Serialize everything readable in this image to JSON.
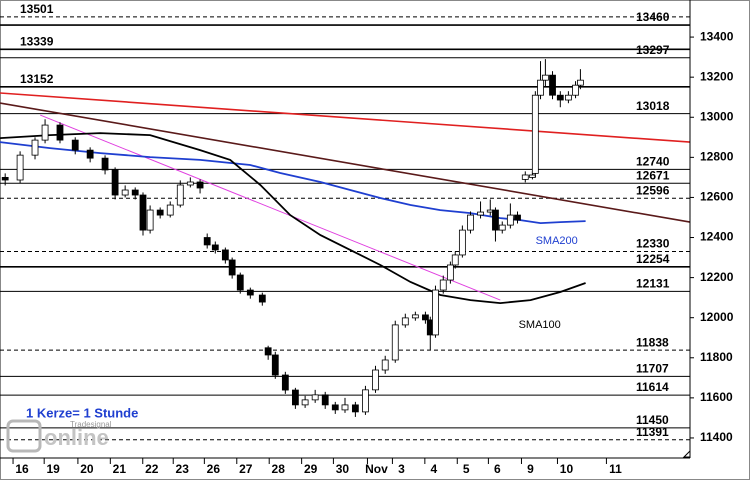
{
  "chart_data": {
    "type": "candlestick",
    "xlim": [
      -0.68,
      20.6
    ],
    "ylim": [
      11300,
      13585
    ],
    "xticks": [
      {
        "value": 0,
        "label": "16"
      },
      {
        "value": 0.96,
        "label": "19"
      },
      {
        "value": 2.0,
        "label": "20"
      },
      {
        "value": 3.0,
        "label": "21"
      },
      {
        "value": 4.0,
        "label": "22"
      },
      {
        "value": 4.94,
        "label": "23"
      },
      {
        "value": 5.9,
        "label": "26"
      },
      {
        "value": 6.9,
        "label": "27"
      },
      {
        "value": 7.9,
        "label": "28"
      },
      {
        "value": 8.9,
        "label": "29"
      },
      {
        "value": 9.88,
        "label": "30"
      },
      {
        "value": 10.93,
        "label": "Nov"
      },
      {
        "value": 11.7,
        "label": "3"
      },
      {
        "value": 12.7,
        "label": "4"
      },
      {
        "value": 13.7,
        "label": "5"
      },
      {
        "value": 14.66,
        "label": "6"
      },
      {
        "value": 15.68,
        "label": "9"
      },
      {
        "value": 16.79,
        "label": "10"
      },
      {
        "value": 18.3,
        "label": "11"
      }
    ],
    "yticks": [
      11400,
      11600,
      11800,
      12000,
      12200,
      12400,
      12600,
      12800,
      13000,
      13200,
      13400
    ],
    "up_color": "#ffffff",
    "down_color": "#000000",
    "x": [
      -0.52,
      -0.06,
      0.4,
      0.71,
      1.17,
      1.64,
      2.1,
      2.56,
      2.87,
      3.18,
      3.49,
      3.73,
      3.95,
      4.26,
      4.57,
      4.88,
      5.19,
      5.49,
      5.71,
      5.96,
      6.27,
      6.48,
      6.73,
      7.04,
      7.41,
      7.59,
      7.81,
      8.12,
      8.43,
      8.73,
      9.04,
      9.35,
      9.66,
      9.96,
      10.28,
      10.59,
      10.9,
      11.2,
      11.51,
      11.82,
      12.13,
      12.44,
      12.59,
      12.75,
      12.99,
      13.21,
      13.36,
      13.58,
      13.83,
      14.14,
      14.44,
      14.6,
      14.81,
      15.06,
      15.28,
      15.52,
      15.74,
      15.83,
      15.99,
      16.14,
      16.36,
      16.6,
      16.85,
      17.07,
      17.22
    ],
    "open": [
      12700,
      12687,
      12811,
      12886,
      12961,
      12886,
      12836,
      12796,
      12737,
      12612,
      12637,
      12612,
      12437,
      12537,
      12512,
      12562,
      12662,
      12677,
      12400,
      12363,
      12338,
      12288,
      12213,
      12138,
      12113,
      11850,
      11814,
      11714,
      11639,
      11565,
      11590,
      11615,
      11565,
      11540,
      11565,
      11530,
      11640,
      11739,
      11789,
      11964,
      11999,
      12014,
      11989,
      11914,
      12138,
      12188,
      12263,
      12313,
      12437,
      12512,
      12527,
      12537,
      12437,
      12462,
      12512,
      12690,
      12700,
      12720,
      13110,
      13185,
      13210,
      13110,
      13086,
      13110,
      13160
    ],
    "high": [
      12720,
      12830,
      12900,
      12990,
      12975,
      12900,
      12850,
      12810,
      12750,
      12660,
      12650,
      12625,
      12560,
      12550,
      12580,
      12685,
      12700,
      12690,
      12420,
      12380,
      12350,
      12300,
      12225,
      12150,
      12125,
      11860,
      11830,
      11730,
      11650,
      11610,
      11640,
      11630,
      11580,
      11600,
      11580,
      11660,
      11760,
      11810,
      11985,
      12020,
      12030,
      12030,
      12005,
      12160,
      12210,
      12280,
      12330,
      12460,
      12530,
      12580,
      12590,
      12550,
      12480,
      12570,
      12530,
      12730,
      12730,
      13130,
      13280,
      13290,
      13230,
      13130,
      13130,
      13180,
      13240
    ],
    "low": [
      12660,
      12670,
      12790,
      12870,
      12870,
      12815,
      12775,
      12715,
      12590,
      12600,
      12590,
      12410,
      12420,
      12495,
      12500,
      12550,
      12650,
      12620,
      12345,
      12320,
      12270,
      12195,
      12120,
      12095,
      12060,
      11790,
      11695,
      11620,
      11545,
      11550,
      11575,
      11545,
      11520,
      11525,
      11505,
      11515,
      11625,
      11720,
      11775,
      11950,
      11985,
      11970,
      11840,
      11900,
      12120,
      12170,
      12245,
      12300,
      12420,
      12495,
      12510,
      12380,
      12420,
      12445,
      12470,
      12675,
      12690,
      12700,
      13090,
      13150,
      13090,
      13050,
      13070,
      13095,
      13140
    ],
    "close": [
      12687,
      12811,
      12886,
      12961,
      12886,
      12836,
      12796,
      12737,
      12612,
      12637,
      12612,
      12437,
      12537,
      12512,
      12562,
      12662,
      12677,
      12647,
      12363,
      12338,
      12288,
      12213,
      12138,
      12113,
      12078,
      11814,
      11714,
      11639,
      11565,
      11590,
      11615,
      11565,
      11540,
      11565,
      11530,
      11640,
      11739,
      11789,
      11964,
      11999,
      12014,
      11989,
      11914,
      12138,
      12188,
      12263,
      12313,
      12437,
      12512,
      12527,
      12537,
      12437,
      12462,
      12512,
      12487,
      12712,
      12712,
      13110,
      13185,
      13210,
      13110,
      13086,
      13110,
      13160,
      13185
    ],
    "series": [
      {
        "name": "SMA200",
        "color": "#1f3fd0",
        "x": [
          -0.68,
          0.86,
          2.41,
          3.95,
          5.49,
          7.04,
          7.96,
          9.2,
          10.12,
          11.05,
          11.98,
          12.9,
          13.83,
          14.75,
          15.37,
          15.99,
          16.6,
          17.38
        ],
        "values": [
          12876,
          12846,
          12821,
          12801,
          12787,
          12762,
          12722,
          12677,
          12637,
          12597,
          12562,
          12537,
          12522,
          12497,
          12487,
          12472,
          12477,
          12482
        ]
      },
      {
        "name": "SMA100",
        "color": "#000000",
        "x": [
          -0.68,
          0.86,
          2.41,
          3.95,
          5.49,
          6.42,
          7.35,
          8.27,
          9.2,
          10.12,
          11.05,
          11.98,
          12.9,
          13.83,
          14.75,
          15.68,
          16.6,
          17.38
        ],
        "values": [
          12896,
          12911,
          12921,
          12911,
          12836,
          12787,
          12662,
          12512,
          12412,
          12338,
          12263,
          12178,
          12113,
          12088,
          12073,
          12088,
          12128,
          12173
        ]
      }
    ],
    "trendlines": [
      {
        "color": "#e02020",
        "x": [
          -0.68,
          20.6
        ],
        "values": [
          13121,
          12876
        ]
      },
      {
        "color": "#5a1a1a",
        "x": [
          -0.68,
          20.6
        ],
        "values": [
          13071,
          12477
        ]
      },
      {
        "color": "#e040e0",
        "x": [
          0.56,
          14.75
        ],
        "values": [
          13011,
          12088
        ]
      }
    ],
    "levels": [
      {
        "value": 13501,
        "label": "13501",
        "side": "left",
        "style": "dashed"
      },
      {
        "value": 13460,
        "label": "13460",
        "side": "right",
        "style": "thick"
      },
      {
        "value": 13339,
        "label": "13339",
        "side": "left",
        "style": "thick"
      },
      {
        "value": 13297,
        "label": "13297",
        "side": "right",
        "style": "solid"
      },
      {
        "value": 13152,
        "label": "13152",
        "side": "left",
        "style": "thick"
      },
      {
        "value": 13018,
        "label": "13018",
        "side": "right",
        "style": "solid"
      },
      {
        "value": 12740,
        "label": "12740",
        "side": "right",
        "style": "solid"
      },
      {
        "value": 12671,
        "label": "12671",
        "side": "right",
        "style": "solid"
      },
      {
        "value": 12596,
        "label": "12596",
        "side": "right",
        "style": "dashed"
      },
      {
        "value": 12330,
        "label": "12330",
        "side": "right",
        "style": "dashed"
      },
      {
        "value": 12254,
        "label": "12254",
        "side": "right",
        "style": "thick"
      },
      {
        "value": 12131,
        "label": "12131",
        "side": "right",
        "style": "solid"
      },
      {
        "value": 11838,
        "label": "11838",
        "side": "right",
        "style": "dashed"
      },
      {
        "value": 11707,
        "label": "11707",
        "side": "right",
        "style": "solid"
      },
      {
        "value": 11614,
        "label": "11614",
        "side": "right",
        "style": "solid"
      },
      {
        "value": 11450,
        "label": "11450",
        "side": "right",
        "style": "solid"
      },
      {
        "value": 11391,
        "label": "11391",
        "side": "right",
        "style": "dashed"
      }
    ],
    "note": "1 Kerze= 1 Stunde",
    "logo": "online",
    "logo_sub": "Tradesignal"
  }
}
